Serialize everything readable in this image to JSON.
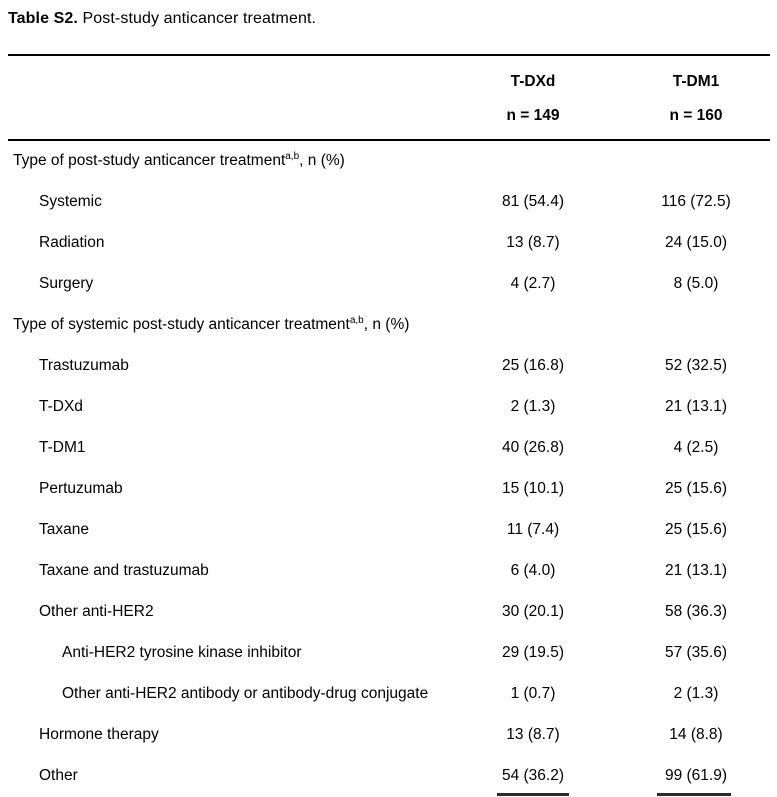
{
  "page": {
    "title_bold": "Table S2.",
    "title_rest": " Post-study anticancer treatment."
  },
  "table": {
    "columns": [
      {
        "line1": "T-DXd",
        "line2": "n = 149"
      },
      {
        "line1": "T-DM1",
        "line2": "n = 160"
      }
    ],
    "rows": [
      {
        "type": "section",
        "indent": 0,
        "label": "Type of post-study anticancer treatment",
        "sup": "a,b",
        "suffix": ", n (%)",
        "values": [
          "",
          ""
        ]
      },
      {
        "type": "item",
        "indent": 1,
        "label": "Systemic",
        "values": [
          "81 (54.4)",
          "116 (72.5)"
        ]
      },
      {
        "type": "item",
        "indent": 1,
        "label": "Radiation",
        "values": [
          "13 (8.7)",
          "24 (15.0)"
        ]
      },
      {
        "type": "item",
        "indent": 1,
        "label": "Surgery",
        "values": [
          "4 (2.7)",
          "8 (5.0)"
        ]
      },
      {
        "type": "section",
        "indent": 0,
        "label": "Type of systemic post-study anticancer treatment",
        "sup": "a,b",
        "suffix": ", n (%)",
        "values": [
          "",
          ""
        ]
      },
      {
        "type": "item",
        "indent": 1,
        "label": "Trastuzumab",
        "values": [
          "25 (16.8)",
          "52 (32.5)"
        ]
      },
      {
        "type": "item",
        "indent": 1,
        "label": "T-DXd",
        "values": [
          "2 (1.3)",
          "21 (13.1)"
        ]
      },
      {
        "type": "item",
        "indent": 1,
        "label": "T-DM1",
        "values": [
          "40 (26.8)",
          "4 (2.5)"
        ]
      },
      {
        "type": "item",
        "indent": 1,
        "label": "Pertuzumab",
        "values": [
          "15 (10.1)",
          "25 (15.6)"
        ]
      },
      {
        "type": "item",
        "indent": 1,
        "label": "Taxane",
        "values": [
          "11 (7.4)",
          "25 (15.6)"
        ]
      },
      {
        "type": "item",
        "indent": 1,
        "label": "Taxane and trastuzumab",
        "values": [
          "6 (4.0)",
          "21 (13.1)"
        ]
      },
      {
        "type": "item",
        "indent": 1,
        "label": "Other anti-HER2",
        "values": [
          "30 (20.1)",
          "58 (36.3)"
        ]
      },
      {
        "type": "item",
        "indent": 2,
        "label": "Anti-HER2 tyrosine kinase inhibitor",
        "values": [
          "29 (19.5)",
          "57 (35.6)"
        ]
      },
      {
        "type": "item",
        "indent": 2,
        "label": "Other anti-HER2 antibody or antibody-drug conjugate",
        "values": [
          "1 (0.7)",
          "2 (1.3)"
        ]
      },
      {
        "type": "item",
        "indent": 1,
        "label": "Hormone therapy",
        "values": [
          "13 (8.7)",
          "14 (8.8)"
        ]
      },
      {
        "type": "item",
        "indent": 1,
        "label": "Other",
        "values": [
          "54 (36.2)",
          "99 (61.9)"
        ]
      }
    ]
  }
}
